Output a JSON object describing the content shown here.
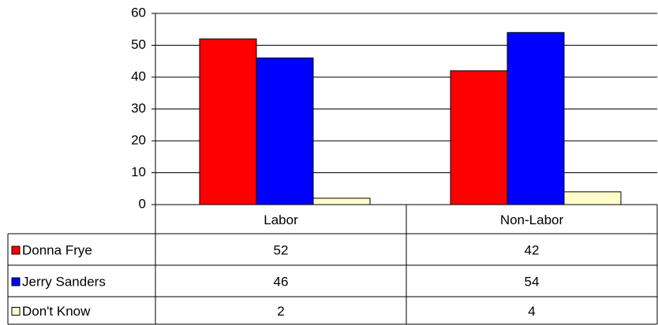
{
  "chart_data": {
    "type": "bar",
    "categories": [
      "Labor",
      "Non-Labor"
    ],
    "series": [
      {
        "name": "Donna Frye",
        "color": "#ff0000",
        "values": [
          52,
          42
        ]
      },
      {
        "name": "Jerry Sanders",
        "color": "#0000ff",
        "values": [
          46,
          54
        ]
      },
      {
        "name": "Don't Know",
        "color": "#ffffcc",
        "values": [
          2,
          4
        ]
      }
    ],
    "ylim": [
      0,
      60
    ],
    "yticks": [
      0,
      10,
      20,
      30,
      40,
      50,
      60
    ],
    "grid": true
  }
}
